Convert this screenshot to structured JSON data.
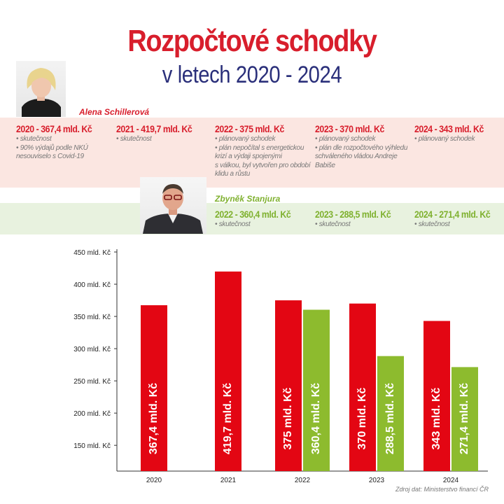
{
  "header": {
    "title": "Rozpočtové schodky",
    "subtitle": "v letech 2020 - 2024"
  },
  "people": {
    "minister_1": "Alena Schillerová",
    "minister_2": "Zbyněk Stanjura"
  },
  "schillerova_years": [
    {
      "heading": "2020 - 367,4 mld. Kč",
      "notes": [
        {
          "text": "skutečnost",
          "bullet": true
        },
        {
          "text": "90% výdajů podle NKÚ",
          "bullet": true
        },
        {
          "text": "nesouviselo s Covid-19",
          "bullet": false
        }
      ]
    },
    {
      "heading": "2021 - 419,7 mld. Kč",
      "notes": [
        {
          "text": "skutečnost",
          "bullet": true
        }
      ]
    },
    {
      "heading": "2022 - 375 mld. Kč",
      "notes": [
        {
          "text": "plánovaný schodek",
          "bullet": true
        },
        {
          "text": "plán nepočítal s energetickou",
          "bullet": true
        },
        {
          "text": "krizí a výdaji spojenými",
          "bullet": false
        },
        {
          "text": "s válkou, byl vytvořen pro období",
          "bullet": false
        },
        {
          "text": "klidu a růstu",
          "bullet": false
        }
      ]
    },
    {
      "heading": "2023 - 370 mld. Kč",
      "notes": [
        {
          "text": "plánovaný schodek",
          "bullet": true
        },
        {
          "text": "plán dle rozpočtového výhledu",
          "bullet": true
        },
        {
          "text": "schváleného vládou Andreje Babiše",
          "bullet": false
        }
      ]
    },
    {
      "heading": "2024 - 343 mld. Kč",
      "notes": [
        {
          "text": "plánovaný schodek",
          "bullet": true
        }
      ]
    }
  ],
  "stanjura_years": [
    {
      "heading": "2022 - 360,4 mld. Kč",
      "notes": [
        {
          "text": "skutečnost",
          "bullet": true
        }
      ]
    },
    {
      "heading": "2023 - 288,5 mld. Kč",
      "notes": [
        {
          "text": "skutečnost",
          "bullet": true
        }
      ]
    },
    {
      "heading": "2024 - 271,4 mld. Kč",
      "notes": [
        {
          "text": "skutečnost",
          "bullet": true
        }
      ]
    }
  ],
  "source": "Zdroj dat: Ministerstvo financí ČR",
  "colors": {
    "red": "#e30613",
    "green": "#8dbb2e",
    "title_red": "#d81e2c",
    "subtitle_blue": "#2a2f7a"
  },
  "chart_data": {
    "type": "bar",
    "categories": [
      "2020",
      "2021",
      "2022",
      "2023",
      "2024"
    ],
    "series": [
      {
        "name": "Alena Schillerová",
        "color": "#e30613",
        "values": [
          367.4,
          419.7,
          375,
          370,
          343
        ],
        "labels": [
          "367,4 mld. Kč",
          "419,7 mld. Kč",
          "375 mld. Kč",
          "370 mld. Kč",
          "343 mld. Kč"
        ]
      },
      {
        "name": "Zbyněk Stanjura",
        "color": "#8dbb2e",
        "values": [
          null,
          null,
          360.4,
          288.5,
          271.4
        ],
        "labels": [
          "",
          "",
          "360,4 mld. Kč",
          "288,5 mld. Kč",
          "271,4 mld. Kč"
        ]
      }
    ],
    "y_ticks": [
      {
        "value": 150,
        "label": "150 mld. Kč"
      },
      {
        "value": 200,
        "label": "200 mld. Kč"
      },
      {
        "value": 250,
        "label": "250 mld. Kč"
      },
      {
        "value": 300,
        "label": "300 mld. Kč"
      },
      {
        "value": 350,
        "label": "350 mld. Kč"
      },
      {
        "value": 400,
        "label": "400 mld. Kč"
      },
      {
        "value": 450,
        "label": "450 mld. Kč"
      }
    ],
    "ylim": [
      110,
      450
    ],
    "grid": false,
    "value_labels": "inside-bar-vertical"
  }
}
